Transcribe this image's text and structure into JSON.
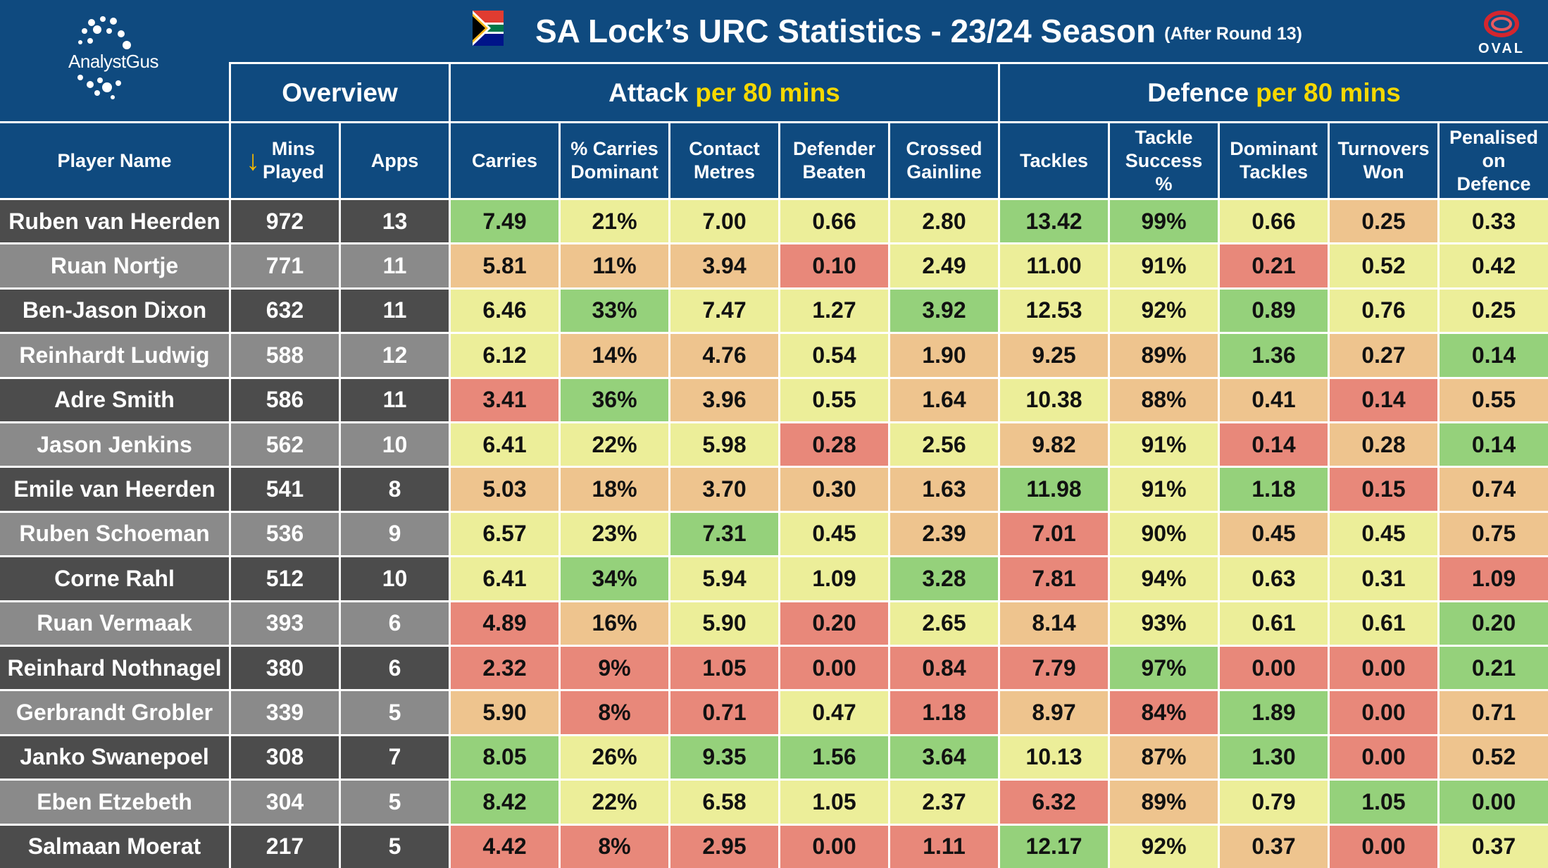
{
  "header": {
    "logo_left_text": "AnalystGus",
    "title": "SA Lock’s URC Statistics - 23/24 Season",
    "subtitle": "(After Round 13)",
    "logo_right_text": "OVAL"
  },
  "groups": [
    {
      "label": "Overview",
      "highlight": ""
    },
    {
      "label": "Attack",
      "highlight": "per 80 mins"
    },
    {
      "label": "Defence",
      "highlight": "per 80 mins"
    }
  ],
  "columns": [
    "Player Name",
    "Mins\nPlayed",
    "Apps",
    "Carries",
    "% Carries\nDominant",
    "Contact\nMetres",
    "Defender\nBeaten",
    "Crossed\nGainline",
    "Tackles",
    "Tackle\nSuccess\n%",
    "Dominant\nTackles",
    "Turnovers\nWon",
    "Penalised\non\nDefence"
  ],
  "sort_indicator": "↓",
  "colors": {
    "header_bg": "#0f4a7f",
    "highlight_text": "#f5d800",
    "row_dark": "#4c4c4c",
    "row_light": "#8a8a8a",
    "green": "#95d17b",
    "yellow": "#ecee99",
    "orange": "#eec48e",
    "red": "#e8887a"
  },
  "chart_data": {
    "type": "table",
    "title": "SA Lock’s URC Statistics - 23/24 Season",
    "subtitle": "(After Round 13)",
    "rows": [
      {
        "name": "Ruben van Heerden",
        "values": [
          "972",
          "13",
          "7.49",
          "21%",
          "7.00",
          "0.66",
          "2.80",
          "13.42",
          "99%",
          "0.66",
          "0.25",
          "0.33"
        ],
        "heat": [
          "g",
          "y",
          "y",
          "y",
          "y",
          "g",
          "g",
          "y",
          "o",
          "y"
        ]
      },
      {
        "name": "Ruan Nortje",
        "values": [
          "771",
          "11",
          "5.81",
          "11%",
          "3.94",
          "0.10",
          "2.49",
          "11.00",
          "91%",
          "0.21",
          "0.52",
          "0.42"
        ],
        "heat": [
          "o",
          "o",
          "o",
          "r",
          "y",
          "y",
          "y",
          "r",
          "y",
          "y"
        ]
      },
      {
        "name": "Ben-Jason Dixon",
        "values": [
          "632",
          "11",
          "6.46",
          "33%",
          "7.47",
          "1.27",
          "3.92",
          "12.53",
          "92%",
          "0.89",
          "0.76",
          "0.25"
        ],
        "heat": [
          "y",
          "g",
          "y",
          "y",
          "g",
          "y",
          "y",
          "g",
          "y",
          "y"
        ]
      },
      {
        "name": "Reinhardt Ludwig",
        "values": [
          "588",
          "12",
          "6.12",
          "14%",
          "4.76",
          "0.54",
          "1.90",
          "9.25",
          "89%",
          "1.36",
          "0.27",
          "0.14"
        ],
        "heat": [
          "y",
          "o",
          "o",
          "y",
          "o",
          "o",
          "o",
          "g",
          "o",
          "g"
        ]
      },
      {
        "name": "Adre Smith",
        "values": [
          "586",
          "11",
          "3.41",
          "36%",
          "3.96",
          "0.55",
          "1.64",
          "10.38",
          "88%",
          "0.41",
          "0.14",
          "0.55"
        ],
        "heat": [
          "r",
          "g",
          "o",
          "y",
          "o",
          "y",
          "o",
          "o",
          "r",
          "o"
        ]
      },
      {
        "name": "Jason Jenkins",
        "values": [
          "562",
          "10",
          "6.41",
          "22%",
          "5.98",
          "0.28",
          "2.56",
          "9.82",
          "91%",
          "0.14",
          "0.28",
          "0.14"
        ],
        "heat": [
          "y",
          "y",
          "y",
          "r",
          "y",
          "o",
          "y",
          "r",
          "o",
          "g"
        ]
      },
      {
        "name": "Emile van Heerden",
        "values": [
          "541",
          "8",
          "5.03",
          "18%",
          "3.70",
          "0.30",
          "1.63",
          "11.98",
          "91%",
          "1.18",
          "0.15",
          "0.74"
        ],
        "heat": [
          "o",
          "o",
          "o",
          "o",
          "o",
          "g",
          "y",
          "g",
          "r",
          "o"
        ]
      },
      {
        "name": "Ruben Schoeman",
        "values": [
          "536",
          "9",
          "6.57",
          "23%",
          "7.31",
          "0.45",
          "2.39",
          "7.01",
          "90%",
          "0.45",
          "0.45",
          "0.75"
        ],
        "heat": [
          "y",
          "y",
          "g",
          "y",
          "o",
          "r",
          "y",
          "o",
          "y",
          "o"
        ]
      },
      {
        "name": "Corne Rahl",
        "values": [
          "512",
          "10",
          "6.41",
          "34%",
          "5.94",
          "1.09",
          "3.28",
          "7.81",
          "94%",
          "0.63",
          "0.31",
          "1.09"
        ],
        "heat": [
          "y",
          "g",
          "y",
          "y",
          "g",
          "r",
          "y",
          "y",
          "y",
          "r"
        ]
      },
      {
        "name": "Ruan Vermaak",
        "values": [
          "393",
          "6",
          "4.89",
          "16%",
          "5.90",
          "0.20",
          "2.65",
          "8.14",
          "93%",
          "0.61",
          "0.61",
          "0.20"
        ],
        "heat": [
          "r",
          "o",
          "y",
          "r",
          "y",
          "o",
          "y",
          "y",
          "y",
          "g"
        ]
      },
      {
        "name": "Reinhard Nothnagel",
        "values": [
          "380",
          "6",
          "2.32",
          "9%",
          "1.05",
          "0.00",
          "0.84",
          "7.79",
          "97%",
          "0.00",
          "0.00",
          "0.21"
        ],
        "heat": [
          "r",
          "r",
          "r",
          "r",
          "r",
          "r",
          "g",
          "r",
          "r",
          "g"
        ]
      },
      {
        "name": "Gerbrandt Grobler",
        "values": [
          "339",
          "5",
          "5.90",
          "8%",
          "0.71",
          "0.47",
          "1.18",
          "8.97",
          "84%",
          "1.89",
          "0.00",
          "0.71"
        ],
        "heat": [
          "o",
          "r",
          "r",
          "y",
          "r",
          "o",
          "r",
          "g",
          "r",
          "o"
        ]
      },
      {
        "name": "Janko Swanepoel",
        "values": [
          "308",
          "7",
          "8.05",
          "26%",
          "9.35",
          "1.56",
          "3.64",
          "10.13",
          "87%",
          "1.30",
          "0.00",
          "0.52"
        ],
        "heat": [
          "g",
          "y",
          "g",
          "g",
          "g",
          "y",
          "o",
          "g",
          "r",
          "o"
        ]
      },
      {
        "name": "Eben Etzebeth",
        "values": [
          "304",
          "5",
          "8.42",
          "22%",
          "6.58",
          "1.05",
          "2.37",
          "6.32",
          "89%",
          "0.79",
          "1.05",
          "0.00"
        ],
        "heat": [
          "g",
          "y",
          "y",
          "y",
          "y",
          "r",
          "o",
          "y",
          "g",
          "g"
        ]
      },
      {
        "name": "Salmaan Moerat",
        "values": [
          "217",
          "5",
          "4.42",
          "8%",
          "2.95",
          "0.00",
          "1.11",
          "12.17",
          "92%",
          "0.37",
          "0.00",
          "0.37"
        ],
        "heat": [
          "r",
          "r",
          "r",
          "r",
          "r",
          "g",
          "y",
          "o",
          "r",
          "y"
        ]
      }
    ]
  }
}
